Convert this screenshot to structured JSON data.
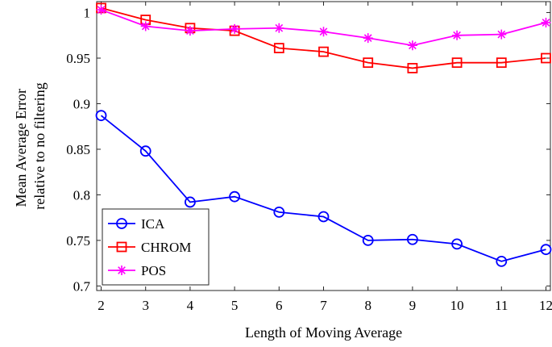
{
  "chart_data": {
    "type": "line",
    "title": "",
    "xlabel": "Length of Moving Average",
    "ylabel": [
      "Mean Average Error",
      "relative to no filtering"
    ],
    "x": [
      2,
      3,
      4,
      5,
      6,
      7,
      8,
      9,
      10,
      11,
      12
    ],
    "xlim": [
      1.9,
      12.1
    ],
    "ylim": [
      0.695,
      1.012
    ],
    "xticks": [
      2,
      3,
      4,
      5,
      6,
      7,
      8,
      9,
      10,
      11,
      12
    ],
    "yticks": [
      0.7,
      0.75,
      0.8,
      0.85,
      0.9,
      0.95,
      1
    ],
    "ytick_labels": [
      "0.7",
      "0.75",
      "0.8",
      "0.85",
      "0.9",
      "0.95",
      "1"
    ],
    "grid": false,
    "legend": "bottom-left",
    "series": [
      {
        "name": "ICA",
        "color": "#0000ff",
        "marker": "circle",
        "values": [
          0.887,
          0.848,
          0.792,
          0.798,
          0.781,
          0.776,
          0.75,
          0.751,
          0.746,
          0.727,
          0.74
        ]
      },
      {
        "name": "CHROM",
        "color": "#ff0000",
        "marker": "square",
        "values": [
          1.005,
          0.992,
          0.983,
          0.98,
          0.961,
          0.957,
          0.945,
          0.939,
          0.945,
          0.945,
          0.95
        ]
      },
      {
        "name": "POS",
        "color": "#ff00ff",
        "marker": "asterisk",
        "values": [
          1.003,
          0.985,
          0.98,
          0.982,
          0.983,
          0.979,
          0.972,
          0.964,
          0.975,
          0.976,
          0.989
        ]
      }
    ]
  }
}
